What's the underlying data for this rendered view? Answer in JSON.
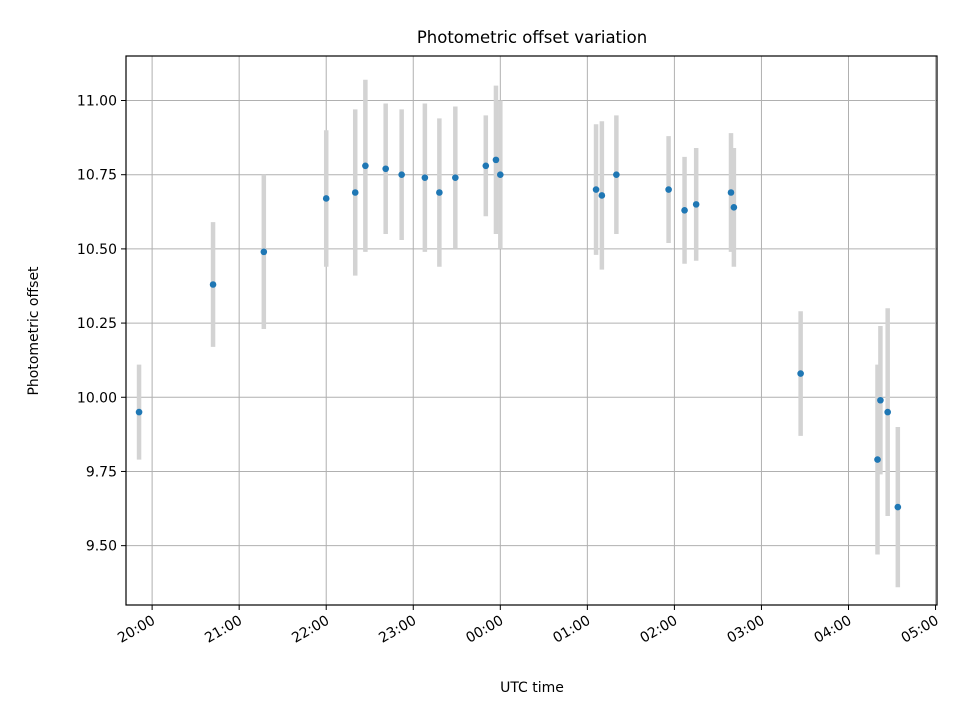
{
  "chart_data": {
    "type": "scatter",
    "title": "Photometric offset variation",
    "xlabel": "UTC time",
    "ylabel": "Photometric offset",
    "ylim": [
      9.3,
      11.15
    ],
    "xlim": [
      "19:42",
      "05:01"
    ],
    "grid": true,
    "legend": "none",
    "x_ticks": [
      "20:00",
      "21:00",
      "22:00",
      "23:00",
      "00:00",
      "01:00",
      "02:00",
      "03:00",
      "04:00",
      "05:00"
    ],
    "y_ticks": [
      "9.50",
      "9.75",
      "10.00",
      "10.25",
      "10.50",
      "10.75",
      "11.00"
    ],
    "point_color": "#1f77b4",
    "errorbar_color": "#d3d3d3",
    "points": [
      {
        "x": "19:51",
        "y": 9.95,
        "yerr": 0.16
      },
      {
        "x": "20:42",
        "y": 10.38,
        "yerr": 0.21
      },
      {
        "x": "21:17",
        "y": 10.49,
        "yerr": 0.26
      },
      {
        "x": "22:00",
        "y": 10.67,
        "yerr": 0.23
      },
      {
        "x": "22:20",
        "y": 10.69,
        "yerr": 0.28
      },
      {
        "x": "22:27",
        "y": 10.78,
        "yerr": 0.29
      },
      {
        "x": "22:41",
        "y": 10.77,
        "yerr": 0.22
      },
      {
        "x": "22:52",
        "y": 10.75,
        "yerr": 0.22
      },
      {
        "x": "23:08",
        "y": 10.74,
        "yerr": 0.25
      },
      {
        "x": "23:18",
        "y": 10.69,
        "yerr": 0.25
      },
      {
        "x": "23:29",
        "y": 10.74,
        "yerr": 0.24
      },
      {
        "x": "23:50",
        "y": 10.78,
        "yerr": 0.17
      },
      {
        "x": "23:57",
        "y": 10.8,
        "yerr": 0.25
      },
      {
        "x": "00:00",
        "y": 10.75,
        "yerr": 0.25
      },
      {
        "x": "01:06",
        "y": 10.7,
        "yerr": 0.22
      },
      {
        "x": "01:10",
        "y": 10.68,
        "yerr": 0.25
      },
      {
        "x": "01:20",
        "y": 10.75,
        "yerr": 0.2
      },
      {
        "x": "01:56",
        "y": 10.7,
        "yerr": 0.18
      },
      {
        "x": "02:07",
        "y": 10.63,
        "yerr": 0.18
      },
      {
        "x": "02:15",
        "y": 10.65,
        "yerr": 0.19
      },
      {
        "x": "02:39",
        "y": 10.69,
        "yerr": 0.2
      },
      {
        "x": "02:41",
        "y": 10.64,
        "yerr": 0.2
      },
      {
        "x": "03:27",
        "y": 10.08,
        "yerr": 0.21
      },
      {
        "x": "04:20",
        "y": 9.79,
        "yerr": 0.32
      },
      {
        "x": "04:22",
        "y": 9.99,
        "yerr": 0.25
      },
      {
        "x": "04:27",
        "y": 9.95,
        "yerr": 0.35
      },
      {
        "x": "04:34",
        "y": 9.63,
        "yerr": 0.27
      }
    ]
  }
}
